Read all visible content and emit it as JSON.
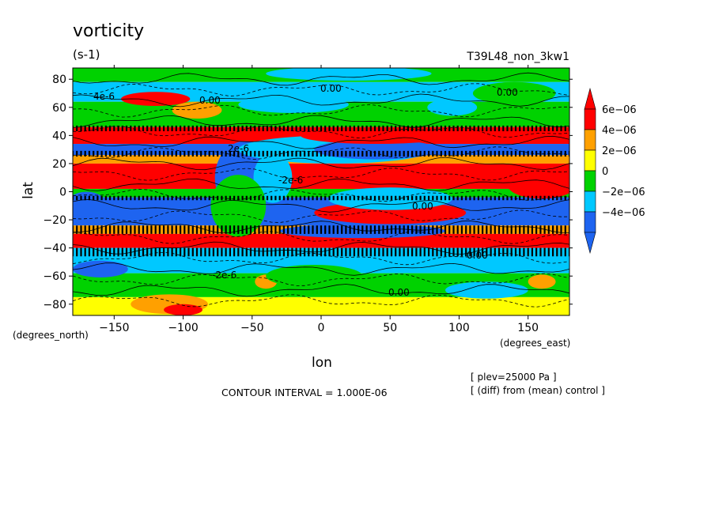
{
  "chart_data": {
    "type": "heatmap",
    "title": "vorticity",
    "units": "(s-1)",
    "run_label": "T39L48_non_3kw1",
    "xlabel": "lon",
    "ylabel": "lat",
    "x_unit_label": "(degrees_east)",
    "y_unit_label": "(degrees_north)",
    "xlim": [
      -180,
      180
    ],
    "ylim": [
      -88,
      88
    ],
    "x_ticks": [
      -150,
      -100,
      -50,
      0,
      50,
      100,
      150
    ],
    "y_ticks": [
      80,
      60,
      40,
      20,
      0,
      -20,
      -40,
      -60,
      -80
    ],
    "x_tick_labels": [
      "−150",
      "−100",
      "−50",
      "0",
      "50",
      "100",
      "150"
    ],
    "y_tick_labels": [
      "80",
      "60",
      "40",
      "20",
      "0",
      "−20",
      "−40",
      "−60",
      "−80"
    ],
    "contour_interval_text": "CONTOUR INTERVAL = 1.000E-06",
    "level_text": "[ plev=25000 Pa ]",
    "diff_text": "[ (diff) from (mean) control ]",
    "contour_labels": [
      "0.00",
      "0.00",
      "0.00",
      "0.00",
      "0.00",
      "0.00",
      "2e-6",
      "-2e-6",
      "-2e-6",
      "4e-6"
    ],
    "colorbar": {
      "colors": [
        "#1e64f0",
        "#00c8ff",
        "#00d200",
        "#ffff00",
        "#ffa000",
        "#ff0000"
      ],
      "labels": [
        "6e−06",
        "4e−06",
        "2e−06",
        "0",
        "−2e−06",
        "−4e−06"
      ]
    },
    "bands": [
      {
        "lat": [
          78,
          90
        ],
        "level": 2
      },
      {
        "lat": [
          64,
          78
        ],
        "level": 1
      },
      {
        "lat": [
          46,
          64
        ],
        "level": 2
      },
      {
        "lat": [
          34,
          46
        ],
        "level": 5
      },
      {
        "lat": [
          26,
          34
        ],
        "level": 0
      },
      {
        "lat": [
          20,
          26
        ],
        "level": 4
      },
      {
        "lat": [
          2,
          20
        ],
        "level": 5
      },
      {
        "lat": [
          -4,
          2
        ],
        "level": 2
      },
      {
        "lat": [
          -24,
          -4
        ],
        "level": 0
      },
      {
        "lat": [
          -30,
          -24
        ],
        "level": 4
      },
      {
        "lat": [
          -40,
          -30
        ],
        "level": 5
      },
      {
        "lat": [
          -58,
          -40
        ],
        "level": 1
      },
      {
        "lat": [
          -75,
          -58
        ],
        "level": 2
      },
      {
        "lat": [
          -90,
          -75
        ],
        "level": 3
      }
    ]
  }
}
